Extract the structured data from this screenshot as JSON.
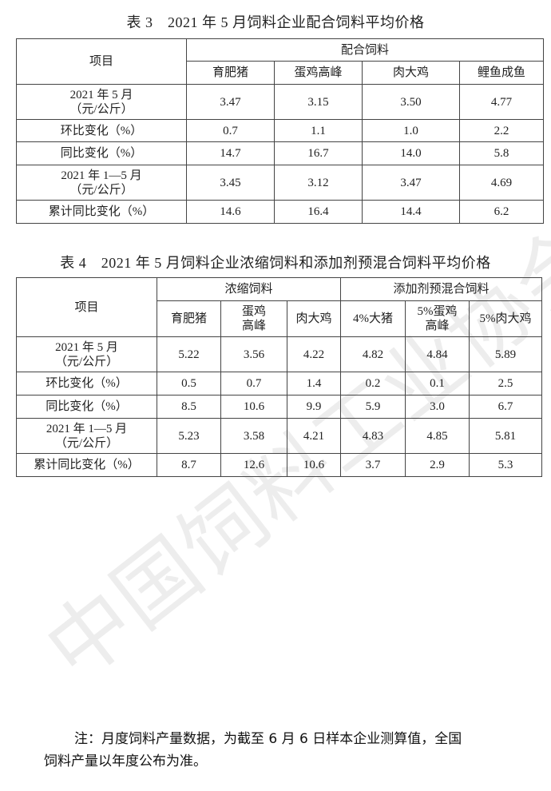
{
  "watermark": "中国饲料工业协会",
  "table3": {
    "title": "表 3　2021 年 5 月饲料企业配合饲料平均价格",
    "item_header": "项目",
    "group_header": "配合饲料",
    "columns": [
      "育肥猪",
      "蛋鸡高峰",
      "肉大鸡",
      "鲤鱼成鱼"
    ],
    "rows": [
      {
        "label": "2021 年 5 月",
        "label2": "（元/公斤）",
        "values": [
          "3.47",
          "3.15",
          "3.50",
          "4.77"
        ]
      },
      {
        "label": "环比变化（%）",
        "values": [
          "0.7",
          "1.1",
          "1.0",
          "2.2"
        ]
      },
      {
        "label": "同比变化（%）",
        "values": [
          "14.7",
          "16.7",
          "14.0",
          "5.8"
        ]
      },
      {
        "label": "2021 年 1—5 月",
        "label2": "（元/公斤）",
        "values": [
          "3.45",
          "3.12",
          "3.47",
          "4.69"
        ]
      },
      {
        "label": "累计同比变化（%）",
        "values": [
          "14.6",
          "16.4",
          "14.4",
          "6.2"
        ]
      }
    ]
  },
  "table4": {
    "title": "表 4　2021 年 5 月饲料企业浓缩饲料和添加剂预混合饲料平均价格",
    "item_header": "项目",
    "group_headers": [
      "浓缩饲料",
      "添加剂预混合饲料"
    ],
    "columns": [
      {
        "l1": "育肥猪"
      },
      {
        "l1": "蛋鸡",
        "l2": "高峰"
      },
      {
        "l1": "肉大鸡"
      },
      {
        "l1": "4%大猪"
      },
      {
        "l1": "5%蛋鸡",
        "l2": "高峰"
      },
      {
        "l1": "5%肉大鸡"
      }
    ],
    "rows": [
      {
        "label": "2021 年 5 月",
        "label2": "（元/公斤）",
        "values": [
          "5.22",
          "3.56",
          "4.22",
          "4.82",
          "4.84",
          "5.89"
        ]
      },
      {
        "label": "环比变化（%）",
        "values": [
          "0.5",
          "0.7",
          "1.4",
          "0.2",
          "0.1",
          "2.5"
        ]
      },
      {
        "label": "同比变化（%）",
        "values": [
          "8.5",
          "10.6",
          "9.9",
          "5.9",
          "3.0",
          "6.7"
        ]
      },
      {
        "label": "2021 年 1—5 月",
        "label2": "（元/公斤）",
        "values": [
          "5.23",
          "3.58",
          "4.21",
          "4.83",
          "4.85",
          "5.81"
        ]
      },
      {
        "label": "累计同比变化（%）",
        "values": [
          "8.7",
          "12.6",
          "10.6",
          "3.7",
          "2.9",
          "5.3"
        ]
      }
    ]
  },
  "note": {
    "line1": "注：月度饲料产量数据，为截至 6 月 6 日样本企业测算值，全国",
    "line2": "饲料产量以年度公布为准。"
  }
}
